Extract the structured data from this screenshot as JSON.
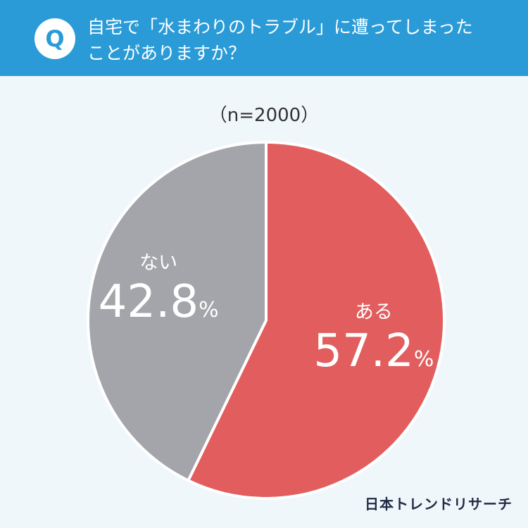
{
  "header": {
    "badge": "Q",
    "question_line1": "自宅で「水まわりのトラブル」に遭ってしまった",
    "question_line2": "ことがありますか？"
  },
  "sample_label": "（n=2000）",
  "chart_data": {
    "type": "pie",
    "title": "",
    "slices": [
      {
        "label": "ある",
        "value": 57.2,
        "display": "57.2",
        "unit": "%",
        "color": "#e25d5d"
      },
      {
        "label": "ない",
        "value": 42.8,
        "display": "42.8",
        "unit": "%",
        "color": "#a3a5aa"
      }
    ],
    "start": "12 o'clock",
    "direction": "clockwise"
  },
  "footer": {
    "logo": "日本トレンドリサーチ"
  },
  "colors": {
    "header_bg": "#2b9bd7",
    "page_bg": "#f0f7fb",
    "separator": "#ffffff"
  }
}
